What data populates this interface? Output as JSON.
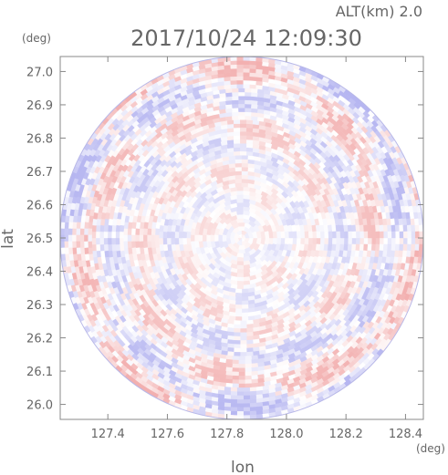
{
  "header": {
    "alt_label": "ALT(km) 2.0",
    "timestamp": "2017/10/24 12:09:30"
  },
  "colors": {
    "positive": "#f0a0a0",
    "negative": "#a8a8ee",
    "axis": "#888888",
    "text": "#666666"
  },
  "chart_data": {
    "type": "heatmap",
    "subtype": "radar-ppi-doppler",
    "xlabel": "lon",
    "ylabel": "lat",
    "x_unit": "(deg)",
    "y_unit": "(deg)",
    "xlim": [
      127.24,
      128.46
    ],
    "ylim": [
      25.955,
      27.045
    ],
    "x_ticks": [
      127.4,
      127.6,
      127.8,
      128.0,
      128.2,
      128.4
    ],
    "x_tick_labels": [
      "127.4",
      "127.6",
      "127.8",
      "128.0",
      "128.2",
      "128.4"
    ],
    "y_ticks": [
      26.0,
      26.1,
      26.2,
      26.3,
      26.4,
      26.5,
      26.6,
      26.7,
      26.8,
      26.9,
      27.0
    ],
    "y_tick_labels": [
      "26.0",
      "26.1",
      "26.2",
      "26.3",
      "26.4",
      "26.5",
      "26.6",
      "26.7",
      "26.8",
      "26.9",
      "27.0"
    ],
    "center": {
      "lon": 127.85,
      "lat": 26.5
    },
    "radius_deg": 0.61,
    "color_scheme": "red positive / blue negative on white",
    "grid": false
  }
}
